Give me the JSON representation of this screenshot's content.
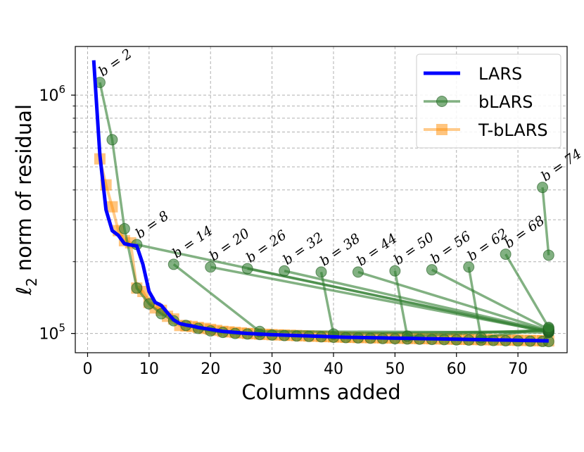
{
  "chart_data": {
    "type": "line",
    "xlabel": "Columns added",
    "ylabel": "ℓ2 norm of residual",
    "yscale": "log",
    "xlim": [
      -2,
      78
    ],
    "ylim": [
      83000,
      1600000
    ],
    "xticks": [
      "0",
      "10",
      "20",
      "30",
      "40",
      "50",
      "60",
      "70"
    ],
    "yticks": [
      {
        "base": "10",
        "exp": "6"
      },
      {
        "base": "10",
        "exp": "5"
      }
    ],
    "grid": true,
    "legend": {
      "placement": "top-right"
    },
    "series": [
      {
        "name": "LARS",
        "color": "#0000ff",
        "x": [
          1,
          2,
          3,
          4,
          5,
          6,
          7,
          8,
          9,
          10,
          11,
          12,
          13,
          14,
          15,
          16,
          17,
          18,
          19,
          20,
          21,
          22,
          23,
          24,
          25,
          26,
          27,
          28,
          29,
          30,
          31,
          32,
          33,
          34,
          35,
          36,
          37,
          38,
          39,
          40,
          41,
          42,
          43,
          44,
          45,
          46,
          47,
          48,
          49,
          50,
          51,
          52,
          53,
          54,
          55,
          56,
          57,
          58,
          59,
          60,
          61,
          62,
          63,
          64,
          65,
          66,
          67,
          68,
          69,
          70,
          71,
          72,
          73,
          74,
          75
        ],
        "y": [
          1400000,
          560000,
          330000,
          270000,
          258000,
          238000,
          235000,
          233000,
          195000,
          150000,
          135000,
          131000,
          122000,
          114000,
          110000,
          108500,
          107500,
          106000,
          105000,
          104000,
          103000,
          102000,
          101500,
          101000,
          100500,
          100000,
          99700,
          99400,
          99100,
          98800,
          98600,
          98400,
          98200,
          98000,
          97800,
          97600,
          97400,
          97200,
          97000,
          96800,
          96600,
          96400,
          96300,
          96200,
          96100,
          96000,
          95900,
          95800,
          95700,
          95600,
          95500,
          95400,
          95300,
          95200,
          95100,
          95000,
          94900,
          94800,
          94700,
          94600,
          94500,
          94400,
          94300,
          94200,
          94100,
          94000,
          93900,
          93800,
          93700,
          93600,
          93500,
          93400,
          93300,
          93200,
          93100
        ]
      },
      {
        "name": "bLARS",
        "color": "#2e7d2e",
        "segments": [
          {
            "b": 2,
            "x": [
              2,
              4,
              6,
              8,
              10,
              12,
              14,
              16,
              18,
              20,
              22,
              24,
              26,
              28,
              30,
              32,
              34,
              36,
              38,
              40,
              42,
              44,
              46,
              48,
              50,
              52,
              54,
              56,
              58,
              60,
              62,
              64,
              66,
              68,
              70,
              72,
              74,
              75
            ],
            "y": [
              1130000,
              650000,
              275000,
              155000,
              133000,
              121000,
              113000,
              108000,
              105000,
              102500,
              101000,
              100000,
              99500,
              99000,
              98500,
              98000,
              97600,
              97200,
              96800,
              96400,
              96100,
              95800,
              95500,
              95200,
              95000,
              94800,
              94600,
              94400,
              94200,
              94000,
              93800,
              93600,
              93400,
              93200,
              93000,
              92800,
              92600,
              92500
            ]
          },
          {
            "b": 8,
            "x": [
              8,
              75
            ],
            "y": [
              236000,
              101000
            ]
          },
          {
            "b": 14,
            "x": [
              14,
              28,
              75
            ],
            "y": [
              195000,
              102000,
              101000
            ]
          },
          {
            "b": 20,
            "x": [
              20,
              75
            ],
            "y": [
              190000,
              101500
            ]
          },
          {
            "b": 26,
            "x": [
              26,
              75
            ],
            "y": [
              187000,
              102000
            ]
          },
          {
            "b": 32,
            "x": [
              32,
              75
            ],
            "y": [
              183000,
              102500
            ]
          },
          {
            "b": 38,
            "x": [
              38,
              40,
              75
            ],
            "y": [
              181000,
              99500,
              102500
            ]
          },
          {
            "b": 44,
            "x": [
              44,
              75
            ],
            "y": [
              181000,
              103000
            ]
          },
          {
            "b": 50,
            "x": [
              50,
              52,
              75
            ],
            "y": [
              183000,
              97500,
              103500
            ]
          },
          {
            "b": 56,
            "x": [
              56,
              75
            ],
            "y": [
              185000,
              104000
            ]
          },
          {
            "b": 62,
            "x": [
              62,
              64,
              75
            ],
            "y": [
              190000,
              96000,
              105000
            ]
          },
          {
            "b": 68,
            "x": [
              68,
              75
            ],
            "y": [
              215000,
              106000
            ]
          },
          {
            "b": 74,
            "x": [
              74,
              75
            ],
            "y": [
              410000,
              213000
            ]
          }
        ]
      },
      {
        "name": "T-bLARS",
        "color": "#ff8c00",
        "x": [
          2,
          3,
          4,
          5,
          6,
          7,
          8,
          9,
          10,
          11,
          12,
          13,
          14,
          15,
          16,
          17,
          18,
          19,
          20,
          21,
          22,
          23,
          24,
          25,
          26,
          27,
          28,
          29,
          30,
          31,
          32,
          33,
          34,
          35,
          36,
          37,
          38,
          39,
          40,
          41,
          42,
          43,
          44,
          45,
          46,
          47,
          48,
          49,
          50,
          51,
          52,
          53,
          54,
          55,
          56,
          57,
          58,
          59,
          60,
          61,
          62,
          63,
          64,
          65,
          66,
          67,
          68,
          69,
          70,
          71,
          72,
          73,
          74,
          75
        ],
        "y": [
          540000,
          420000,
          340000,
          270000,
          245000,
          240000,
          155000,
          150000,
          135000,
          128000,
          125000,
          118000,
          115000,
          108000,
          107500,
          107000,
          106000,
          105000,
          104000,
          103000,
          102000,
          101500,
          101000,
          100500,
          100000,
          99700,
          99400,
          99100,
          98800,
          98600,
          98400,
          98200,
          98000,
          97800,
          97600,
          97400,
          97200,
          97000,
          96800,
          96600,
          96400,
          96300,
          96200,
          96100,
          96000,
          95900,
          95800,
          95700,
          95600,
          95500,
          95400,
          95300,
          95200,
          95100,
          95000,
          94900,
          94800,
          94700,
          94600,
          94500,
          94400,
          94300,
          94200,
          94100,
          94000,
          93900,
          93800,
          93700,
          93600,
          93500,
          93400,
          93300,
          93200,
          93100
        ]
      }
    ],
    "annotations": [
      {
        "text": "b = 2",
        "x": 2,
        "y": 1130000
      },
      {
        "text": "b = 8",
        "x": 8,
        "y": 236000
      },
      {
        "text": "b = 14",
        "x": 14,
        "y": 195000
      },
      {
        "text": "b = 20",
        "x": 20,
        "y": 190000
      },
      {
        "text": "b = 26",
        "x": 26,
        "y": 187000
      },
      {
        "text": "b = 32",
        "x": 32,
        "y": 183000
      },
      {
        "text": "b = 38",
        "x": 38,
        "y": 181000
      },
      {
        "text": "b = 44",
        "x": 44,
        "y": 181000
      },
      {
        "text": "b = 50",
        "x": 50,
        "y": 183000
      },
      {
        "text": "b = 56",
        "x": 56,
        "y": 185000
      },
      {
        "text": "b = 62",
        "x": 62,
        "y": 190000
      },
      {
        "text": "b = 68",
        "x": 68,
        "y": 215000
      },
      {
        "text": "b = 74",
        "x": 74,
        "y": 410000
      }
    ]
  }
}
